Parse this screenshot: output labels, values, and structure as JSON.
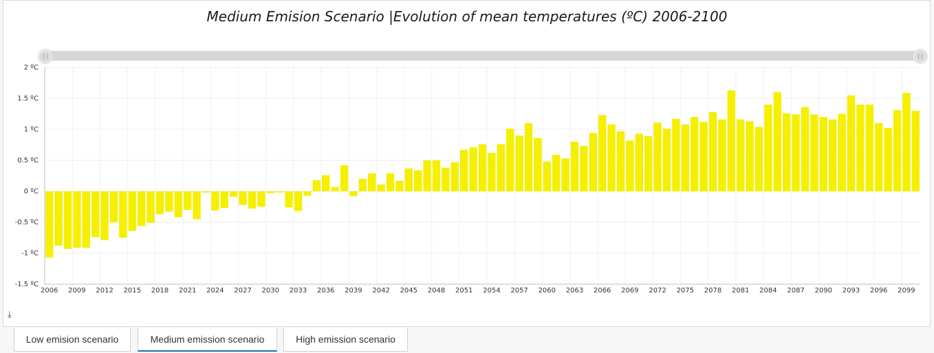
{
  "tabs": [
    {
      "label": "Low emision scenario",
      "active": false
    },
    {
      "label": "Medium emission scenario",
      "active": true
    },
    {
      "label": "High emission scenario",
      "active": false
    }
  ],
  "download_icon": "download-icon",
  "chart_data": {
    "type": "bar",
    "title": "Medium Emision Scenario |Evolution of mean temperatures (ºC) 2006-2100",
    "xlabel": "",
    "ylabel": "",
    "ylim": [
      -1.5,
      2
    ],
    "y_ticks": [
      "2 ºC",
      "1.5 ºC",
      "1 ºC",
      "0.5 ºC",
      "0 ºC",
      "-0.5 ºC",
      "-1 ºC",
      "-1.5 ºC"
    ],
    "y_tick_values": [
      2,
      1.5,
      1,
      0.5,
      0,
      -0.5,
      -1,
      -1.5
    ],
    "x_tick_labels": [
      "2006",
      "2009",
      "2012",
      "2015",
      "2018",
      "2021",
      "2024",
      "2027",
      "2030",
      "2033",
      "2036",
      "2039",
      "2042",
      "2045",
      "2048",
      "2051",
      "2054",
      "2057",
      "2060",
      "2063",
      "2066",
      "2069",
      "2072",
      "2075",
      "2078",
      "2081",
      "2084",
      "2087",
      "2090",
      "2093",
      "2096",
      "2099"
    ],
    "grid": true,
    "bar_color": "#f5ef00",
    "categories": [
      2006,
      2007,
      2008,
      2009,
      2010,
      2011,
      2012,
      2013,
      2014,
      2015,
      2016,
      2017,
      2018,
      2019,
      2020,
      2021,
      2022,
      2023,
      2024,
      2025,
      2026,
      2027,
      2028,
      2029,
      2030,
      2031,
      2032,
      2033,
      2034,
      2035,
      2036,
      2037,
      2038,
      2039,
      2040,
      2041,
      2042,
      2043,
      2044,
      2045,
      2046,
      2047,
      2048,
      2049,
      2050,
      2051,
      2052,
      2053,
      2054,
      2055,
      2056,
      2057,
      2058,
      2059,
      2060,
      2061,
      2062,
      2063,
      2064,
      2065,
      2066,
      2067,
      2068,
      2069,
      2070,
      2071,
      2072,
      2073,
      2074,
      2075,
      2076,
      2077,
      2078,
      2079,
      2080,
      2081,
      2082,
      2083,
      2084,
      2085,
      2086,
      2087,
      2088,
      2089,
      2090,
      2091,
      2092,
      2093,
      2094,
      2095,
      2096,
      2097,
      2098,
      2099,
      2100
    ],
    "values": [
      -1.07,
      -0.88,
      -0.93,
      -0.91,
      -0.91,
      -0.74,
      -0.79,
      -0.5,
      -0.75,
      -0.64,
      -0.56,
      -0.51,
      -0.37,
      -0.33,
      -0.42,
      -0.3,
      -0.45,
      -0.02,
      -0.31,
      -0.27,
      -0.09,
      -0.22,
      -0.28,
      -0.25,
      -0.03,
      -0.02,
      -0.26,
      -0.32,
      -0.07,
      0.18,
      0.26,
      0.07,
      0.42,
      -0.08,
      0.2,
      0.29,
      0.11,
      0.29,
      0.17,
      0.37,
      0.34,
      0.5,
      0.5,
      0.38,
      0.47,
      0.67,
      0.71,
      0.76,
      0.62,
      0.76,
      1.01,
      0.9,
      1.1,
      0.86,
      0.48,
      0.59,
      0.53,
      0.8,
      0.73,
      0.94,
      1.23,
      1.08,
      0.97,
      0.82,
      0.93,
      0.89,
      1.11,
      1.01,
      1.17,
      1.08,
      1.2,
      1.12,
      1.28,
      1.16,
      1.63,
      1.16,
      1.13,
      1.04,
      1.4,
      1.6,
      1.26,
      1.24,
      1.36,
      1.24,
      1.2,
      1.16,
      1.25,
      1.55,
      1.4,
      1.4,
      1.1,
      1.02,
      1.31,
      1.59,
      1.3
    ]
  }
}
